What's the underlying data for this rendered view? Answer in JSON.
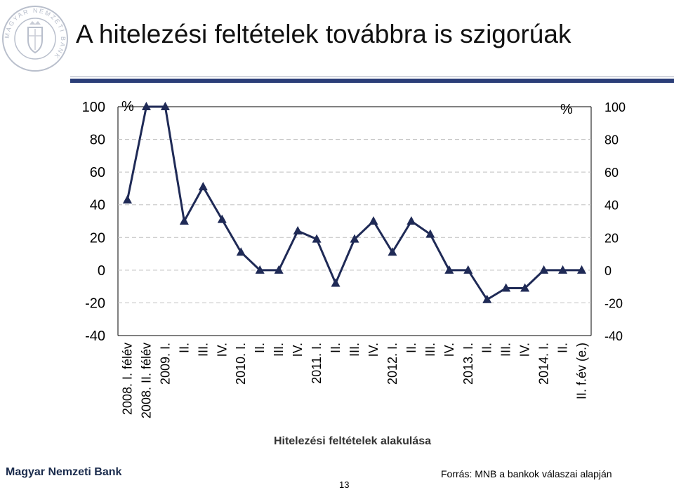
{
  "header": {
    "title": "A hitelezési feltételek továbbra is szigorúak",
    "logo_text": "MAGYAR NEMZETI BANK"
  },
  "chart_data": {
    "type": "line",
    "title": "",
    "xlabel": "Hitelezési feltételek alakulása",
    "ylabel_left": "%",
    "ylabel_right": "%",
    "ylim": [
      -40,
      100
    ],
    "yticks": [
      100,
      80,
      60,
      40,
      20,
      0,
      -20,
      -40
    ],
    "grid": "dashed-horizontal",
    "categories": [
      "2008. I. félév",
      "2008. II. félév",
      "2009. I.",
      "II.",
      "III.",
      "IV.",
      "2010. I.",
      "II.",
      "III.",
      "IV.",
      "2011. I.",
      "II.",
      "III.",
      "IV.",
      "2012. I.",
      "II.",
      "III.",
      "IV.",
      "2013. I.",
      "II.",
      "III.",
      "IV.",
      "2014. I.",
      "II.",
      "II. f.év (e.)"
    ],
    "series": [
      {
        "name": "Hitelezési feltételek",
        "color": "#1f2a56",
        "marker": "triangle",
        "values": [
          43,
          100,
          100,
          30,
          51,
          31,
          11,
          0,
          0,
          24,
          19,
          -8,
          19,
          30,
          11,
          30,
          22,
          0,
          0,
          -18,
          -11,
          -11,
          0,
          0,
          0
        ]
      }
    ]
  },
  "footer": {
    "bank_name": "Magyar Nemzeti Bank",
    "source": "Forrás: MNB a bankok válaszai alapján",
    "page_number": "13"
  }
}
